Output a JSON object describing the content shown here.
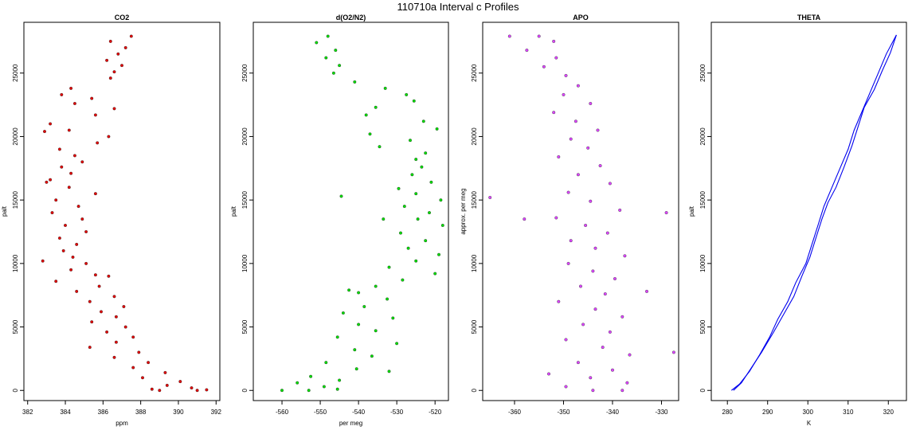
{
  "title": "110710a   Interval c Profiles",
  "chart_data": [
    {
      "type": "scatter",
      "title": "CO2",
      "xlabel": "ppm",
      "ylabel": "palt",
      "xlim": [
        381.8,
        392.2
      ],
      "ylim": [
        -800,
        29000
      ],
      "xticks": [
        382,
        384,
        386,
        388,
        390,
        392
      ],
      "yticks": [
        0,
        5000,
        10000,
        15000,
        20000,
        25000
      ],
      "color": "#e00000",
      "series": [
        {
          "values": [
            [
              387.5,
              27900
            ],
            [
              386.4,
              27500
            ],
            [
              387.2,
              27000
            ],
            [
              386.8,
              26500
            ],
            [
              386.2,
              26000
            ],
            [
              387.0,
              25600
            ],
            [
              386.6,
              25100
            ],
            [
              386.4,
              24600
            ],
            [
              384.3,
              23800
            ],
            [
              383.8,
              23300
            ],
            [
              385.4,
              23000
            ],
            [
              384.5,
              22600
            ],
            [
              386.6,
              22200
            ],
            [
              385.6,
              21700
            ],
            [
              383.2,
              21000
            ],
            [
              384.2,
              20500
            ],
            [
              382.9,
              20400
            ],
            [
              386.3,
              20000
            ],
            [
              385.7,
              19500
            ],
            [
              383.7,
              19000
            ],
            [
              384.5,
              18500
            ],
            [
              384.9,
              18000
            ],
            [
              383.8,
              17600
            ],
            [
              384.3,
              17100
            ],
            [
              383.2,
              16600
            ],
            [
              384.2,
              16000
            ],
            [
              385.6,
              15500
            ],
            [
              383.5,
              15000
            ],
            [
              384.7,
              14500
            ],
            [
              383.3,
              14000
            ],
            [
              384.9,
              13500
            ],
            [
              384.0,
              13000
            ],
            [
              385.1,
              12500
            ],
            [
              383.7,
              12000
            ],
            [
              384.6,
              11500
            ],
            [
              383.9,
              11000
            ],
            [
              384.4,
              10500
            ],
            [
              382.8,
              10200
            ],
            [
              385.1,
              10000
            ],
            [
              384.3,
              9500
            ],
            [
              386.3,
              9000
            ],
            [
              383.5,
              8600
            ],
            [
              385.8,
              8200
            ],
            [
              384.6,
              7800
            ],
            [
              386.6,
              7400
            ],
            [
              385.3,
              7000
            ],
            [
              387.1,
              6600
            ],
            [
              385.9,
              6200
            ],
            [
              386.7,
              5800
            ],
            [
              385.4,
              5400
            ],
            [
              387.2,
              5000
            ],
            [
              386.2,
              4600
            ],
            [
              387.6,
              4200
            ],
            [
              386.7,
              3800
            ],
            [
              385.3,
              3400
            ],
            [
              387.9,
              3000
            ],
            [
              386.6,
              2600
            ],
            [
              388.4,
              2200
            ],
            [
              387.6,
              1800
            ],
            [
              389.3,
              1400
            ],
            [
              388.1,
              1000
            ],
            [
              390.1,
              700
            ],
            [
              389.4,
              400
            ],
            [
              390.7,
              200
            ],
            [
              388.6,
              100
            ],
            [
              389.0,
              0
            ],
            [
              391.0,
              0
            ],
            [
              391.5,
              50
            ],
            [
              385.6,
              9100
            ],
            [
              383.0,
              16400
            ]
          ]
        }
      ]
    },
    {
      "type": "scatter",
      "title": "d(O2/N2)",
      "xlabel": "per meg",
      "ylabel": "palt",
      "xlim": [
        -567.5,
        -516.5
      ],
      "ylim": [
        -800,
        29000
      ],
      "xticks": [
        -560,
        -550,
        -540,
        -530,
        -520
      ],
      "yticks": [
        0,
        5000,
        10000,
        15000,
        20000,
        25000
      ],
      "color": "#00dd00",
      "series": [
        {
          "values": [
            [
              -548.0,
              27900
            ],
            [
              -551.0,
              27400
            ],
            [
              -546.0,
              26800
            ],
            [
              -548.5,
              26200
            ],
            [
              -545.0,
              25600
            ],
            [
              -546.5,
              25000
            ],
            [
              -541.0,
              24300
            ],
            [
              -533.0,
              23800
            ],
            [
              -527.5,
              23300
            ],
            [
              -525.5,
              22800
            ],
            [
              -535.5,
              22300
            ],
            [
              -538.0,
              21700
            ],
            [
              -523.0,
              21200
            ],
            [
              -519.5,
              20600
            ],
            [
              -537.0,
              20200
            ],
            [
              -526.5,
              19700
            ],
            [
              -534.5,
              19200
            ],
            [
              -522.5,
              18700
            ],
            [
              -525.0,
              18200
            ],
            [
              -523.5,
              17600
            ],
            [
              -526.0,
              17000
            ],
            [
              -521.0,
              16400
            ],
            [
              -529.5,
              15900
            ],
            [
              -525.0,
              15500
            ],
            [
              -518.5,
              15000
            ],
            [
              -528.0,
              14500
            ],
            [
              -521.5,
              14000
            ],
            [
              -524.5,
              13500
            ],
            [
              -518.0,
              13000
            ],
            [
              -529.0,
              12400
            ],
            [
              -522.5,
              11800
            ],
            [
              -527.0,
              11200
            ],
            [
              -519.0,
              10700
            ],
            [
              -525.0,
              10200
            ],
            [
              -532.0,
              9700
            ],
            [
              -520.0,
              9200
            ],
            [
              -528.5,
              8700
            ],
            [
              -535.5,
              8200
            ],
            [
              -540.0,
              7700
            ],
            [
              -532.5,
              7200
            ],
            [
              -538.5,
              6600
            ],
            [
              -544.0,
              6100
            ],
            [
              -531.0,
              5700
            ],
            [
              -540.0,
              5200
            ],
            [
              -535.5,
              4700
            ],
            [
              -545.5,
              4200
            ],
            [
              -530.0,
              3700
            ],
            [
              -541.0,
              3200
            ],
            [
              -536.5,
              2700
            ],
            [
              -548.5,
              2200
            ],
            [
              -540.5,
              1700
            ],
            [
              -532.0,
              1500
            ],
            [
              -552.5,
              1100
            ],
            [
              -545.0,
              800
            ],
            [
              -556.0,
              600
            ],
            [
              -549.0,
              300
            ],
            [
              -560.0,
              0
            ],
            [
              -553.0,
              0
            ],
            [
              -545.5,
              100
            ],
            [
              -544.5,
              15300
            ],
            [
              -533.5,
              13500
            ],
            [
              -542.5,
              7900
            ]
          ]
        }
      ]
    },
    {
      "type": "scatter",
      "title": "APO",
      "xlabel": "",
      "ylabel": "approx. per meg",
      "xlim": [
        -366.5,
        -326.5
      ],
      "ylim": [
        -800,
        29000
      ],
      "xticks": [
        -360,
        -350,
        -340,
        -330
      ],
      "yticks": [
        0,
        5000,
        10000,
        15000,
        20000,
        25000
      ],
      "color": "#dd44ff",
      "series": [
        {
          "values": [
            [
              -355.0,
              27900
            ],
            [
              -361.0,
              27900
            ],
            [
              -352.0,
              27500
            ],
            [
              -357.5,
              26800
            ],
            [
              -351.5,
              26200
            ],
            [
              -354.0,
              25500
            ],
            [
              -349.5,
              24800
            ],
            [
              -347.0,
              24000
            ],
            [
              -350.0,
              23300
            ],
            [
              -344.5,
              22600
            ],
            [
              -352.0,
              21900
            ],
            [
              -347.5,
              21200
            ],
            [
              -343.0,
              20500
            ],
            [
              -348.5,
              19800
            ],
            [
              -345.0,
              19100
            ],
            [
              -351.0,
              18400
            ],
            [
              -342.5,
              17700
            ],
            [
              -347.0,
              17000
            ],
            [
              -340.5,
              16300
            ],
            [
              -349.0,
              15600
            ],
            [
              -344.5,
              14900
            ],
            [
              -338.5,
              14200
            ],
            [
              -351.5,
              13600
            ],
            [
              -345.5,
              13000
            ],
            [
              -341.0,
              12400
            ],
            [
              -348.5,
              11800
            ],
            [
              -343.5,
              11200
            ],
            [
              -337.5,
              10600
            ],
            [
              -349.0,
              10000
            ],
            [
              -344.0,
              9400
            ],
            [
              -339.5,
              8800
            ],
            [
              -346.5,
              8200
            ],
            [
              -341.5,
              7600
            ],
            [
              -351.0,
              7000
            ],
            [
              -343.5,
              6400
            ],
            [
              -338.0,
              5800
            ],
            [
              -346.0,
              5200
            ],
            [
              -340.5,
              4600
            ],
            [
              -349.5,
              4000
            ],
            [
              -342.0,
              3400
            ],
            [
              -336.5,
              2800
            ],
            [
              -347.0,
              2200
            ],
            [
              -340.0,
              1600
            ],
            [
              -344.5,
              1000
            ],
            [
              -337.0,
              600
            ],
            [
              -349.5,
              300
            ],
            [
              -344.0,
              0
            ],
            [
              -338.0,
              0
            ],
            [
              -365.0,
              15200
            ],
            [
              -327.5,
              3000
            ],
            [
              -329.0,
              14000
            ],
            [
              -358.0,
              13500
            ],
            [
              -333.0,
              7800
            ],
            [
              -353.0,
              1300
            ]
          ]
        }
      ]
    },
    {
      "type": "line",
      "title": "THETA",
      "xlabel": "K",
      "ylabel": "palt",
      "xlim": [
        276.0,
        324.5
      ],
      "ylim": [
        -800,
        29000
      ],
      "xticks": [
        280,
        290,
        300,
        310,
        320
      ],
      "yticks": [
        0,
        5000,
        10000,
        15000,
        20000,
        25000
      ],
      "color": "#0000ee",
      "series": [
        {
          "values": [
            [
              281.0,
              0
            ],
            [
              283.0,
              500
            ],
            [
              285.5,
              1500
            ],
            [
              288.0,
              2800
            ],
            [
              290.5,
              4200
            ],
            [
              292.5,
              5600
            ],
            [
              295.0,
              7000
            ],
            [
              297.0,
              8500
            ],
            [
              299.5,
              10000
            ],
            [
              301.0,
              11500
            ],
            [
              302.5,
              13000
            ],
            [
              304.0,
              14500
            ],
            [
              306.0,
              16000
            ],
            [
              308.0,
              17500
            ],
            [
              310.0,
              19000
            ],
            [
              311.5,
              20500
            ],
            [
              313.5,
              22000
            ],
            [
              315.5,
              23500
            ],
            [
              317.5,
              25000
            ],
            [
              319.5,
              26500
            ],
            [
              322.0,
              28000
            ]
          ]
        },
        {
          "values": [
            [
              281.5,
              0
            ],
            [
              283.5,
              600
            ],
            [
              286.0,
              1800
            ],
            [
              288.5,
              3000
            ],
            [
              291.5,
              4600
            ],
            [
              294.0,
              6000
            ],
            [
              296.5,
              7400
            ],
            [
              298.5,
              9000
            ],
            [
              300.5,
              10500
            ],
            [
              302.0,
              12000
            ],
            [
              303.5,
              13500
            ],
            [
              305.0,
              14800
            ],
            [
              307.0,
              16000
            ],
            [
              309.0,
              17600
            ],
            [
              311.0,
              19300
            ],
            [
              312.5,
              20800
            ],
            [
              314.0,
              22300
            ],
            [
              316.5,
              23700
            ],
            [
              318.5,
              25200
            ],
            [
              320.5,
              26600
            ],
            [
              322.0,
              28000
            ]
          ]
        }
      ]
    }
  ]
}
